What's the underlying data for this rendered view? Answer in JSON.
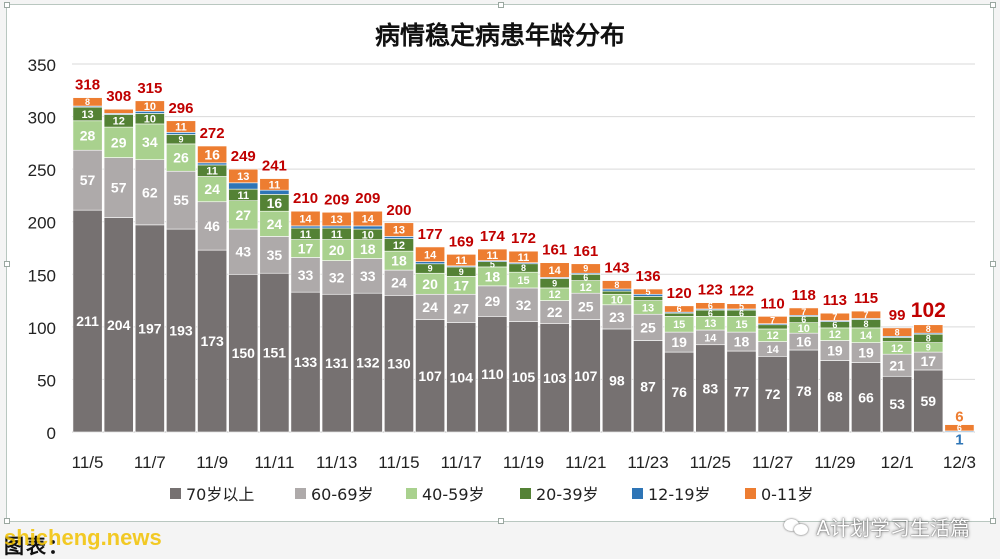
{
  "chart_data": {
    "type": "bar",
    "stacked": true,
    "title": "病情稳定病患年龄分布",
    "ylim": [
      0,
      350
    ],
    "yticks": [
      0,
      50,
      100,
      150,
      200,
      250,
      300,
      350
    ],
    "grid": true,
    "legend_position": "bottom",
    "xtick_labels": [
      "11/5",
      "11/7",
      "11/9",
      "11/11",
      "11/13",
      "11/15",
      "11/17",
      "11/19",
      "11/21",
      "11/23",
      "11/25",
      "11/27",
      "11/29",
      "12/1",
      "12/3"
    ],
    "categories": [
      "11/5",
      "11/6",
      "11/7",
      "11/8",
      "11/9",
      "11/10",
      "11/11",
      "11/12",
      "11/13",
      "11/14",
      "11/15",
      "11/16",
      "11/17",
      "11/18",
      "11/19",
      "11/20",
      "11/21",
      "11/22",
      "11/23",
      "11/24",
      "11/25",
      "11/26",
      "11/27",
      "11/28",
      "11/29",
      "11/30",
      "12/1",
      "12/2",
      "12/3"
    ],
    "totals": [
      318,
      308,
      315,
      296,
      272,
      249,
      241,
      210,
      209,
      209,
      200,
      177,
      169,
      174,
      172,
      161,
      161,
      143,
      136,
      120,
      123,
      122,
      110,
      118,
      113,
      115,
      99,
      102,
      null
    ],
    "series": [
      {
        "name": "70岁以上",
        "color": "#767171",
        "values": [
          211,
          204,
          197,
          193,
          173,
          150,
          151,
          133,
          131,
          132,
          130,
          107,
          104,
          110,
          105,
          103,
          107,
          98,
          87,
          76,
          83,
          77,
          72,
          78,
          68,
          66,
          53,
          59,
          null
        ]
      },
      {
        "name": "60-69岁",
        "color": "#aeaaaa",
        "values": [
          57,
          57,
          62,
          55,
          46,
          43,
          35,
          33,
          32,
          33,
          24,
          24,
          27,
          29,
          32,
          22,
          25,
          23,
          25,
          19,
          14,
          18,
          14,
          16,
          19,
          19,
          21,
          17,
          null
        ]
      },
      {
        "name": "40-59岁",
        "color": "#a9d18e",
        "values": [
          28,
          29,
          34,
          26,
          24,
          27,
          24,
          17,
          20,
          18,
          18,
          20,
          17,
          18,
          15,
          12,
          12,
          10,
          13,
          15,
          13,
          15,
          12,
          10,
          12,
          14,
          12,
          9,
          null
        ]
      },
      {
        "name": "20-39岁",
        "color": "#548235",
        "values": [
          13,
          12,
          10,
          9,
          11,
          11,
          16,
          11,
          11,
          10,
          12,
          9,
          9,
          5,
          8,
          9,
          6,
          3,
          4,
          3,
          6,
          6,
          4,
          6,
          6,
          8,
          4,
          8,
          null
        ]
      },
      {
        "name": "12-19岁",
        "color": "#2e75b6",
        "values": [
          1,
          1,
          2,
          2,
          2,
          6,
          4,
          2,
          2,
          3,
          2,
          2,
          1,
          1,
          1,
          1,
          1,
          2,
          2,
          1,
          1,
          1,
          1,
          1,
          1,
          1,
          1,
          1,
          1
        ]
      },
      {
        "name": "0-11岁",
        "color": "#ed7d31",
        "values": [
          8,
          4,
          10,
          11,
          16,
          13,
          11,
          14,
          13,
          14,
          13,
          14,
          11,
          11,
          11,
          14,
          9,
          8,
          5,
          6,
          6,
          5,
          7,
          7,
          7,
          7,
          8,
          8,
          6
        ]
      }
    ],
    "colors": {
      "total_label": "#c00000",
      "last_total_label": "#c00000"
    }
  },
  "footer": {
    "left_text": "图表：",
    "watermark": "shicheng.news",
    "right_text": "A计划学习生活篇"
  }
}
